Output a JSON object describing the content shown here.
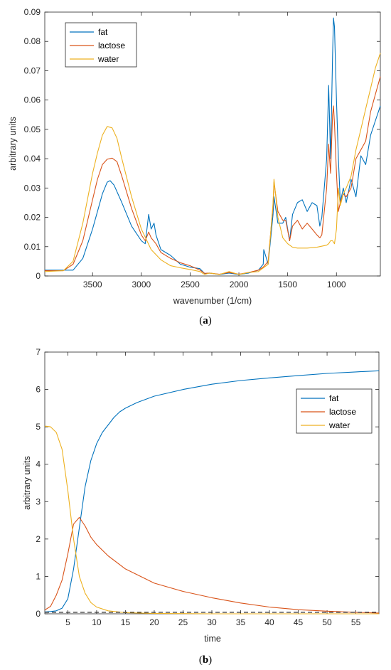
{
  "chart_data": [
    {
      "type": "line",
      "panel_label": "a",
      "xlabel": "wavenumber (1/cm)",
      "ylabel": "arbitrary units",
      "xlim": [
        3990,
        550
      ],
      "x_reversed": true,
      "ylim": [
        0,
        0.09
      ],
      "xticks": [
        3500,
        3000,
        2500,
        2000,
        1500,
        1000
      ],
      "yticks": [
        0,
        0.01,
        0.02,
        0.03,
        0.04,
        0.05,
        0.06,
        0.07,
        0.08,
        0.09
      ],
      "legend_position": "top-left",
      "grid": false,
      "series": [
        {
          "name": "fat",
          "color": "#0072BD",
          "points": [
            [
              3990,
              0.002
            ],
            [
              3800,
              0.002
            ],
            [
              3700,
              0.002
            ],
            [
              3600,
              0.006
            ],
            [
              3500,
              0.016
            ],
            [
              3450,
              0.022
            ],
            [
              3400,
              0.028
            ],
            [
              3350,
              0.032
            ],
            [
              3320,
              0.0325
            ],
            [
              3280,
              0.031
            ],
            [
              3200,
              0.025
            ],
            [
              3100,
              0.017
            ],
            [
              3000,
              0.012
            ],
            [
              2960,
              0.011
            ],
            [
              2925,
              0.021
            ],
            [
              2900,
              0.016
            ],
            [
              2870,
              0.018
            ],
            [
              2850,
              0.014
            ],
            [
              2800,
              0.009
            ],
            [
              2700,
              0.007
            ],
            [
              2600,
              0.004
            ],
            [
              2500,
              0.003
            ],
            [
              2400,
              0.0025
            ],
            [
              2350,
              0.0008
            ],
            [
              2300,
              0.001
            ],
            [
              2200,
              0.0005
            ],
            [
              2100,
              0.001
            ],
            [
              2000,
              0.0005
            ],
            [
              1900,
              0.001
            ],
            [
              1800,
              0.002
            ],
            [
              1750,
              0.004
            ],
            [
              1745,
              0.009
            ],
            [
              1700,
              0.004
            ],
            [
              1650,
              0.021
            ],
            [
              1640,
              0.027
            ],
            [
              1600,
              0.018
            ],
            [
              1550,
              0.018
            ],
            [
              1520,
              0.02
            ],
            [
              1480,
              0.012
            ],
            [
              1450,
              0.021
            ],
            [
              1400,
              0.025
            ],
            [
              1350,
              0.026
            ],
            [
              1300,
              0.022
            ],
            [
              1250,
              0.025
            ],
            [
              1200,
              0.024
            ],
            [
              1170,
              0.017
            ],
            [
              1150,
              0.02
            ],
            [
              1100,
              0.04
            ],
            [
              1080,
              0.065
            ],
            [
              1060,
              0.04
            ],
            [
              1040,
              0.075
            ],
            [
              1030,
              0.088
            ],
            [
              1020,
              0.085
            ],
            [
              1000,
              0.06
            ],
            [
              980,
              0.04
            ],
            [
              960,
              0.025
            ],
            [
              930,
              0.03
            ],
            [
              900,
              0.025
            ],
            [
              850,
              0.033
            ],
            [
              800,
              0.027
            ],
            [
              750,
              0.041
            ],
            [
              700,
              0.038
            ],
            [
              650,
              0.048
            ],
            [
              600,
              0.053
            ],
            [
              550,
              0.058
            ]
          ]
        },
        {
          "name": "lactose",
          "color": "#D95319",
          "points": [
            [
              3990,
              0.0018
            ],
            [
              3800,
              0.0018
            ],
            [
              3700,
              0.004
            ],
            [
              3600,
              0.012
            ],
            [
              3500,
              0.026
            ],
            [
              3450,
              0.033
            ],
            [
              3400,
              0.038
            ],
            [
              3350,
              0.0398
            ],
            [
              3300,
              0.0402
            ],
            [
              3250,
              0.039
            ],
            [
              3200,
              0.034
            ],
            [
              3100,
              0.023
            ],
            [
              3000,
              0.014
            ],
            [
              2960,
              0.012
            ],
            [
              2925,
              0.015
            ],
            [
              2900,
              0.013
            ],
            [
              2850,
              0.011
            ],
            [
              2800,
              0.008
            ],
            [
              2700,
              0.006
            ],
            [
              2600,
              0.0045
            ],
            [
              2500,
              0.0035
            ],
            [
              2400,
              0.002
            ],
            [
              2350,
              0.0009
            ],
            [
              2300,
              0.001
            ],
            [
              2200,
              0.0006
            ],
            [
              2100,
              0.0012
            ],
            [
              2000,
              0.0006
            ],
            [
              1900,
              0.0012
            ],
            [
              1800,
              0.002
            ],
            [
              1750,
              0.003
            ],
            [
              1700,
              0.005
            ],
            [
              1650,
              0.024
            ],
            [
              1640,
              0.032
            ],
            [
              1600,
              0.022
            ],
            [
              1550,
              0.019
            ],
            [
              1520,
              0.019
            ],
            [
              1480,
              0.012
            ],
            [
              1450,
              0.017
            ],
            [
              1400,
              0.019
            ],
            [
              1350,
              0.016
            ],
            [
              1300,
              0.018
            ],
            [
              1250,
              0.016
            ],
            [
              1200,
              0.014
            ],
            [
              1170,
              0.013
            ],
            [
              1150,
              0.014
            ],
            [
              1100,
              0.03
            ],
            [
              1080,
              0.045
            ],
            [
              1060,
              0.035
            ],
            [
              1040,
              0.055
            ],
            [
              1030,
              0.058
            ],
            [
              1020,
              0.052
            ],
            [
              1000,
              0.035
            ],
            [
              980,
              0.022
            ],
            [
              960,
              0.025
            ],
            [
              930,
              0.028
            ],
            [
              900,
              0.027
            ],
            [
              850,
              0.03
            ],
            [
              800,
              0.04
            ],
            [
              750,
              0.043
            ],
            [
              700,
              0.046
            ],
            [
              650,
              0.056
            ],
            [
              600,
              0.062
            ],
            [
              550,
              0.068
            ]
          ]
        },
        {
          "name": "water",
          "color": "#EDB120",
          "points": [
            [
              3990,
              0.0015
            ],
            [
              3800,
              0.0018
            ],
            [
              3700,
              0.005
            ],
            [
              3600,
              0.018
            ],
            [
              3500,
              0.035
            ],
            [
              3450,
              0.042
            ],
            [
              3400,
              0.048
            ],
            [
              3350,
              0.051
            ],
            [
              3300,
              0.0505
            ],
            [
              3250,
              0.047
            ],
            [
              3200,
              0.04
            ],
            [
              3100,
              0.027
            ],
            [
              3000,
              0.016
            ],
            [
              2900,
              0.009
            ],
            [
              2800,
              0.0055
            ],
            [
              2700,
              0.0035
            ],
            [
              2600,
              0.0028
            ],
            [
              2500,
              0.0022
            ],
            [
              2400,
              0.0015
            ],
            [
              2350,
              0.0005
            ],
            [
              2300,
              0.001
            ],
            [
              2200,
              0.0005
            ],
            [
              2100,
              0.0015
            ],
            [
              2000,
              0.0005
            ],
            [
              1900,
              0.0012
            ],
            [
              1800,
              0.0015
            ],
            [
              1700,
              0.004
            ],
            [
              1650,
              0.025
            ],
            [
              1640,
              0.033
            ],
            [
              1600,
              0.02
            ],
            [
              1550,
              0.013
            ],
            [
              1500,
              0.011
            ],
            [
              1450,
              0.0098
            ],
            [
              1400,
              0.0095
            ],
            [
              1300,
              0.0095
            ],
            [
              1200,
              0.0098
            ],
            [
              1100,
              0.0105
            ],
            [
              1080,
              0.011
            ],
            [
              1060,
              0.012
            ],
            [
              1040,
              0.012
            ],
            [
              1020,
              0.011
            ],
            [
              1000,
              0.016
            ],
            [
              980,
              0.03
            ],
            [
              960,
              0.024
            ],
            [
              930,
              0.028
            ],
            [
              900,
              0.03
            ],
            [
              850,
              0.034
            ],
            [
              800,
              0.043
            ],
            [
              750,
              0.05
            ],
            [
              700,
              0.057
            ],
            [
              650,
              0.064
            ],
            [
              600,
              0.071
            ],
            [
              550,
              0.076
            ]
          ]
        }
      ]
    },
    {
      "type": "line",
      "panel_label": "b",
      "xlabel": "time",
      "ylabel": "arbitrary units",
      "xlim": [
        1,
        59
      ],
      "ylim": [
        0,
        7
      ],
      "xticks": [
        5,
        10,
        15,
        20,
        25,
        30,
        35,
        40,
        45,
        50,
        55
      ],
      "yticks": [
        0,
        1,
        2,
        3,
        4,
        5,
        6,
        7
      ],
      "legend_position": "top-right",
      "grid": false,
      "series": [
        {
          "name": "fat",
          "color": "#0072BD",
          "points": [
            [
              1,
              0.05
            ],
            [
              2,
              0.06
            ],
            [
              3,
              0.08
            ],
            [
              4,
              0.15
            ],
            [
              5,
              0.4
            ],
            [
              6,
              1.2
            ],
            [
              7,
              2.3
            ],
            [
              8,
              3.4
            ],
            [
              9,
              4.1
            ],
            [
              10,
              4.55
            ],
            [
              11,
              4.85
            ],
            [
              12,
              5.05
            ],
            [
              13,
              5.25
            ],
            [
              14,
              5.4
            ],
            [
              15,
              5.5
            ],
            [
              17,
              5.65
            ],
            [
              20,
              5.82
            ],
            [
              25,
              6.0
            ],
            [
              30,
              6.14
            ],
            [
              35,
              6.24
            ],
            [
              40,
              6.31
            ],
            [
              45,
              6.37
            ],
            [
              50,
              6.43
            ],
            [
              55,
              6.47
            ],
            [
              59,
              6.5
            ]
          ]
        },
        {
          "name": "lactose",
          "color": "#D95319",
          "points": [
            [
              1,
              0.1
            ],
            [
              2,
              0.2
            ],
            [
              3,
              0.5
            ],
            [
              4,
              0.9
            ],
            [
              5,
              1.6
            ],
            [
              6,
              2.4
            ],
            [
              7,
              2.58
            ],
            [
              8,
              2.35
            ],
            [
              9,
              2.05
            ],
            [
              10,
              1.85
            ],
            [
              12,
              1.55
            ],
            [
              15,
              1.2
            ],
            [
              20,
              0.82
            ],
            [
              25,
              0.6
            ],
            [
              30,
              0.43
            ],
            [
              35,
              0.29
            ],
            [
              40,
              0.18
            ],
            [
              45,
              0.11
            ],
            [
              50,
              0.07
            ],
            [
              55,
              0.04
            ],
            [
              59,
              0.02
            ]
          ]
        },
        {
          "name": "water",
          "color": "#EDB120",
          "points": [
            [
              1,
              5.02
            ],
            [
              2,
              5.0
            ],
            [
              3,
              4.85
            ],
            [
              4,
              4.4
            ],
            [
              5,
              3.3
            ],
            [
              6,
              2.0
            ],
            [
              7,
              1.0
            ],
            [
              8,
              0.55
            ],
            [
              9,
              0.3
            ],
            [
              10,
              0.18
            ],
            [
              12,
              0.08
            ],
            [
              15,
              0.03
            ],
            [
              20,
              0.01
            ],
            [
              30,
              0.0
            ],
            [
              40,
              0.0
            ],
            [
              59,
              0.0
            ]
          ]
        },
        {
          "name": "",
          "color": "#262626",
          "dashed": true,
          "points": [
            [
              1,
              0.04
            ],
            [
              59,
              0.04
            ]
          ]
        }
      ]
    }
  ]
}
